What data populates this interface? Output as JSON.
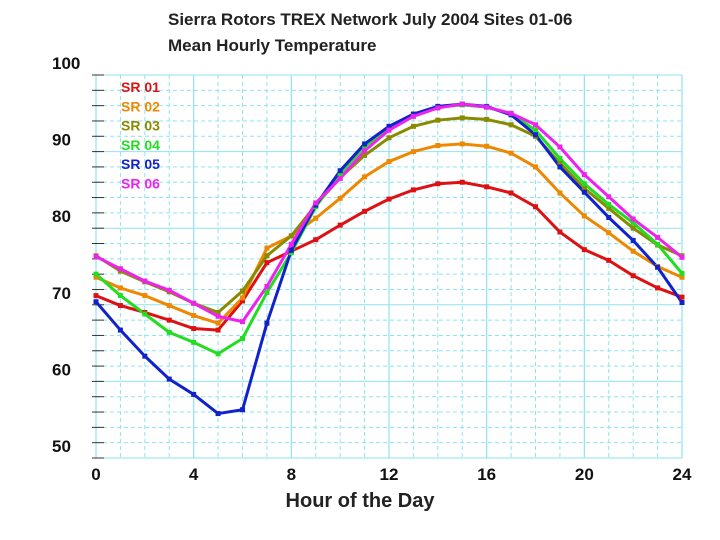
{
  "chart_data": {
    "type": "line",
    "title": "Sierra Rotors TREX Network July 2004 Sites 01-06",
    "subtitle": "Mean Hourly Temperature",
    "xlabel": "Hour of the Day",
    "ylabel": "",
    "xlim": [
      0,
      24
    ],
    "ylim": [
      50,
      100
    ],
    "xticks": [
      0,
      4,
      8,
      12,
      16,
      20,
      24
    ],
    "yticks": [
      100,
      90,
      80,
      70,
      60,
      50
    ],
    "grid": true,
    "legend_position": "top-left",
    "x": [
      0,
      1,
      2,
      3,
      4,
      5,
      6,
      7,
      8,
      9,
      10,
      11,
      12,
      13,
      14,
      15,
      16,
      17,
      18,
      19,
      20,
      21,
      22,
      23,
      24
    ],
    "series": [
      {
        "name": "SR 01",
        "color": "#dd1111",
        "values": [
          71.2,
          69.9,
          69.0,
          68.0,
          66.9,
          66.7,
          70.5,
          75.5,
          77.0,
          78.5,
          80.4,
          82.2,
          83.8,
          85.0,
          85.8,
          86.0,
          85.4,
          84.6,
          82.8,
          79.5,
          77.2,
          75.8,
          73.8,
          72.2,
          71.0
        ]
      },
      {
        "name": "SR 02",
        "color": "#ee8800",
        "values": [
          73.6,
          72.2,
          71.2,
          69.9,
          68.6,
          67.6,
          70.9,
          77.4,
          79.0,
          81.3,
          83.9,
          86.7,
          88.7,
          90.0,
          90.8,
          91.0,
          90.7,
          89.8,
          88.0,
          84.6,
          81.6,
          79.4,
          77.0,
          75.0,
          73.6
        ]
      },
      {
        "name": "SR 03",
        "color": "#8a8a00",
        "values": [
          76.4,
          74.4,
          73.0,
          71.7,
          70.2,
          69.0,
          71.8,
          76.4,
          79.0,
          83.0,
          86.6,
          89.5,
          91.8,
          93.3,
          94.1,
          94.4,
          94.2,
          93.5,
          92.0,
          88.5,
          85.2,
          82.6,
          80.0,
          77.8,
          76.4
        ]
      },
      {
        "name": "SR 04",
        "color": "#22dd22",
        "values": [
          74.0,
          71.2,
          68.8,
          66.4,
          65.1,
          63.6,
          65.6,
          71.6,
          76.8,
          82.8,
          87.1,
          90.7,
          93.0,
          94.8,
          95.8,
          96.1,
          95.8,
          94.9,
          92.8,
          89.1,
          85.8,
          83.1,
          80.7,
          77.9,
          74.1
        ]
      },
      {
        "name": "SR 05",
        "color": "#1122cc",
        "values": [
          70.4,
          66.7,
          63.3,
          60.3,
          58.3,
          55.8,
          56.3,
          67.6,
          77.1,
          83.0,
          87.5,
          91.0,
          93.3,
          94.9,
          95.9,
          96.2,
          95.9,
          94.8,
          92.2,
          88.0,
          84.7,
          81.4,
          78.4,
          74.9,
          70.3
        ]
      },
      {
        "name": "SR 06",
        "color": "#ee22ee",
        "values": [
          76.3,
          74.7,
          73.1,
          71.9,
          70.2,
          68.5,
          67.8,
          72.4,
          77.9,
          83.3,
          86.5,
          90.1,
          92.8,
          94.6,
          95.7,
          96.2,
          95.8,
          95.0,
          93.5,
          90.6,
          87.0,
          84.1,
          81.2,
          78.8,
          76.2
        ]
      }
    ]
  }
}
